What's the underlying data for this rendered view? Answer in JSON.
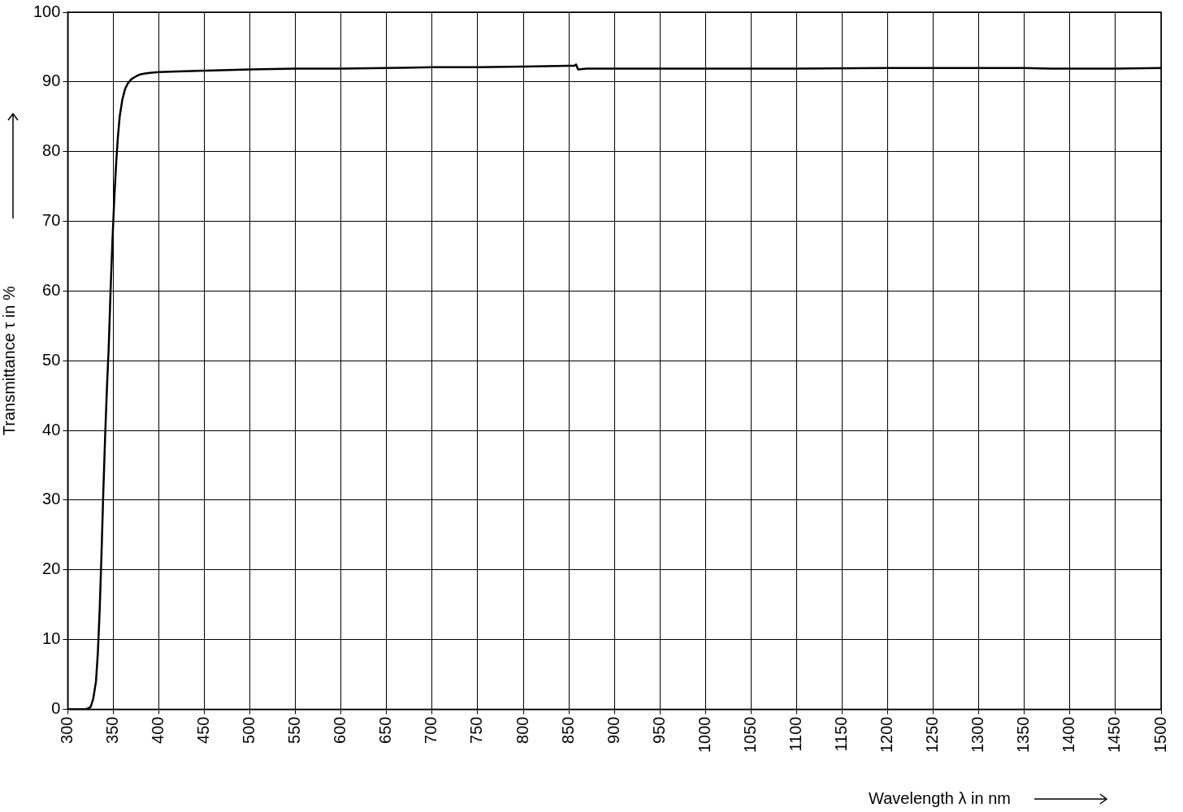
{
  "chart_data": {
    "type": "line",
    "xlabel": "Wavelength λ in nm",
    "ylabel": "Transmittance τ in %",
    "xlim": [
      300,
      1500
    ],
    "xticks": [
      300,
      350,
      400,
      450,
      500,
      550,
      600,
      650,
      700,
      750,
      800,
      850,
      900,
      950,
      1000,
      1050,
      1100,
      1150,
      1200,
      1250,
      1300,
      1350,
      1400,
      1450,
      1500
    ],
    "ylim": [
      0,
      100
    ],
    "yticks": [
      0,
      10,
      20,
      30,
      40,
      50,
      60,
      70,
      80,
      90,
      100
    ],
    "grid": true,
    "legend": false,
    "marker": "none",
    "line_style": "solid",
    "series": [
      {
        "color": "#000000",
        "x": [
          300,
          320,
          325,
          328,
          331,
          333,
          335,
          337,
          339,
          341,
          343,
          345,
          347,
          349,
          351,
          353,
          355,
          357,
          360,
          363,
          366,
          370,
          375,
          380,
          385,
          390,
          400,
          420,
          450,
          500,
          550,
          600,
          650,
          700,
          750,
          800,
          850,
          856,
          858,
          860,
          870,
          900,
          1000,
          1100,
          1200,
          1300,
          1350,
          1380,
          1400,
          1450,
          1500
        ],
        "values": [
          0,
          0,
          0.3,
          1.5,
          4,
          8,
          14,
          22,
          31,
          39,
          46,
          52,
          60,
          67,
          73,
          78,
          82,
          85,
          87.5,
          89,
          89.8,
          90.4,
          90.8,
          91.1,
          91.2,
          91.3,
          91.4,
          91.5,
          91.6,
          91.8,
          91.9,
          91.9,
          92,
          92.1,
          92.1,
          92.2,
          92.3,
          92.3,
          92.5,
          91.8,
          91.9,
          91.9,
          91.9,
          91.9,
          92,
          92,
          92,
          91.9,
          91.9,
          91.9,
          92
        ]
      }
    ]
  }
}
